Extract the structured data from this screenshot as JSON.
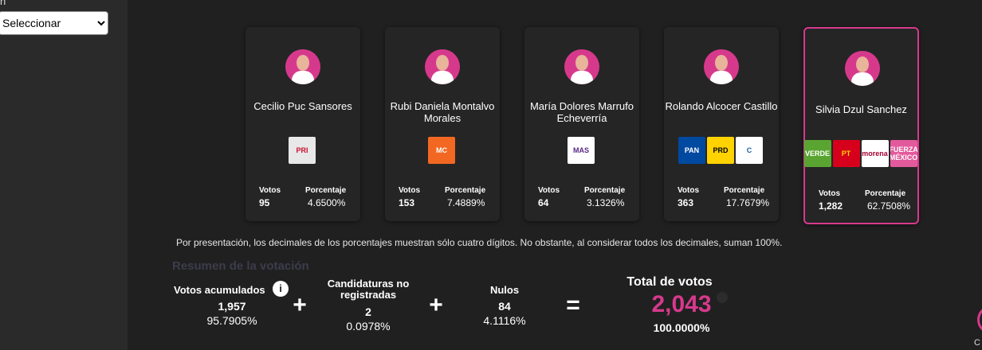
{
  "sidebar": {
    "label": "n",
    "select": "Seleccionar"
  },
  "candidates": [
    {
      "name": "Cecilio Puc Sansores",
      "parties": [
        {
          "name": "PRI",
          "color": "#e8e8e8",
          "text_color": "#c8102e"
        }
      ],
      "votes_label": "Votos",
      "votes": "95",
      "percent_label": "Porcentaje",
      "percent": "4.6500%",
      "selected": false
    },
    {
      "name": "Rubi Daniela Montalvo Morales",
      "parties": [
        {
          "name": "MC",
          "color": "#f26822",
          "text_color": "#ffffff"
        }
      ],
      "votes_label": "Votos",
      "votes": "153",
      "percent_label": "Porcentaje",
      "percent": "7.4889%",
      "selected": false
    },
    {
      "name": "María Dolores Marrufo Echeverría",
      "parties": [
        {
          "name": "MAS",
          "color": "#ffffff",
          "text_color": "#5b2a86"
        }
      ],
      "votes_label": "Votos",
      "votes": "64",
      "percent_label": "Porcentaje",
      "percent": "3.1326%",
      "selected": false
    },
    {
      "name": "Rolando Alcocer Castillo",
      "parties": [
        {
          "name": "PAN",
          "color": "#0049a0",
          "text_color": "#ffffff"
        },
        {
          "name": "PRD",
          "color": "#ffd200",
          "text_color": "#000000"
        },
        {
          "name": "C",
          "color": "#ffffff",
          "text_color": "#1b5fa8"
        }
      ],
      "votes_label": "Votos",
      "votes": "363",
      "percent_label": "Porcentaje",
      "percent": "17.7679%",
      "selected": false
    },
    {
      "name": "Silvia Dzul Sanchez",
      "parties": [
        {
          "name": "VERDE",
          "color": "#5aa532",
          "text_color": "#ffffff"
        },
        {
          "name": "PT",
          "color": "#d6001c",
          "text_color": "#ffd200"
        },
        {
          "name": "morena",
          "color": "#ffffff",
          "text_color": "#a50034"
        },
        {
          "name": "FUERZA MÉXICO",
          "color": "#e35a9c",
          "text_color": "#ffffff"
        }
      ],
      "votes_label": "Votos",
      "votes": "1,282",
      "percent_label": "Porcentaje",
      "percent": "62.7508%",
      "selected": true
    }
  ],
  "note": "Por presentación, los decimales de los porcentajes muestran sólo cuatro dígitos. No obstante, al considerar todos los decimales, suman 100%.",
  "summary": {
    "title": "Resumen de la votación",
    "accumulated": {
      "label": "Votos acumulados",
      "icon": "i",
      "votes": "1,957",
      "percent": "95.7905%"
    },
    "plus_1": "+",
    "unregistered": {
      "label": "Candidaturas no registradas",
      "votes": "2",
      "percent": "0.0978%"
    },
    "plus_2": "+",
    "null_votes": {
      "label": "Nulos",
      "votes": "84",
      "percent": "4.1116%"
    },
    "equals": "=",
    "total": {
      "label": "Total de votos",
      "votes": "2,043",
      "percent": "100.0000%"
    }
  },
  "corner_label": "C"
}
